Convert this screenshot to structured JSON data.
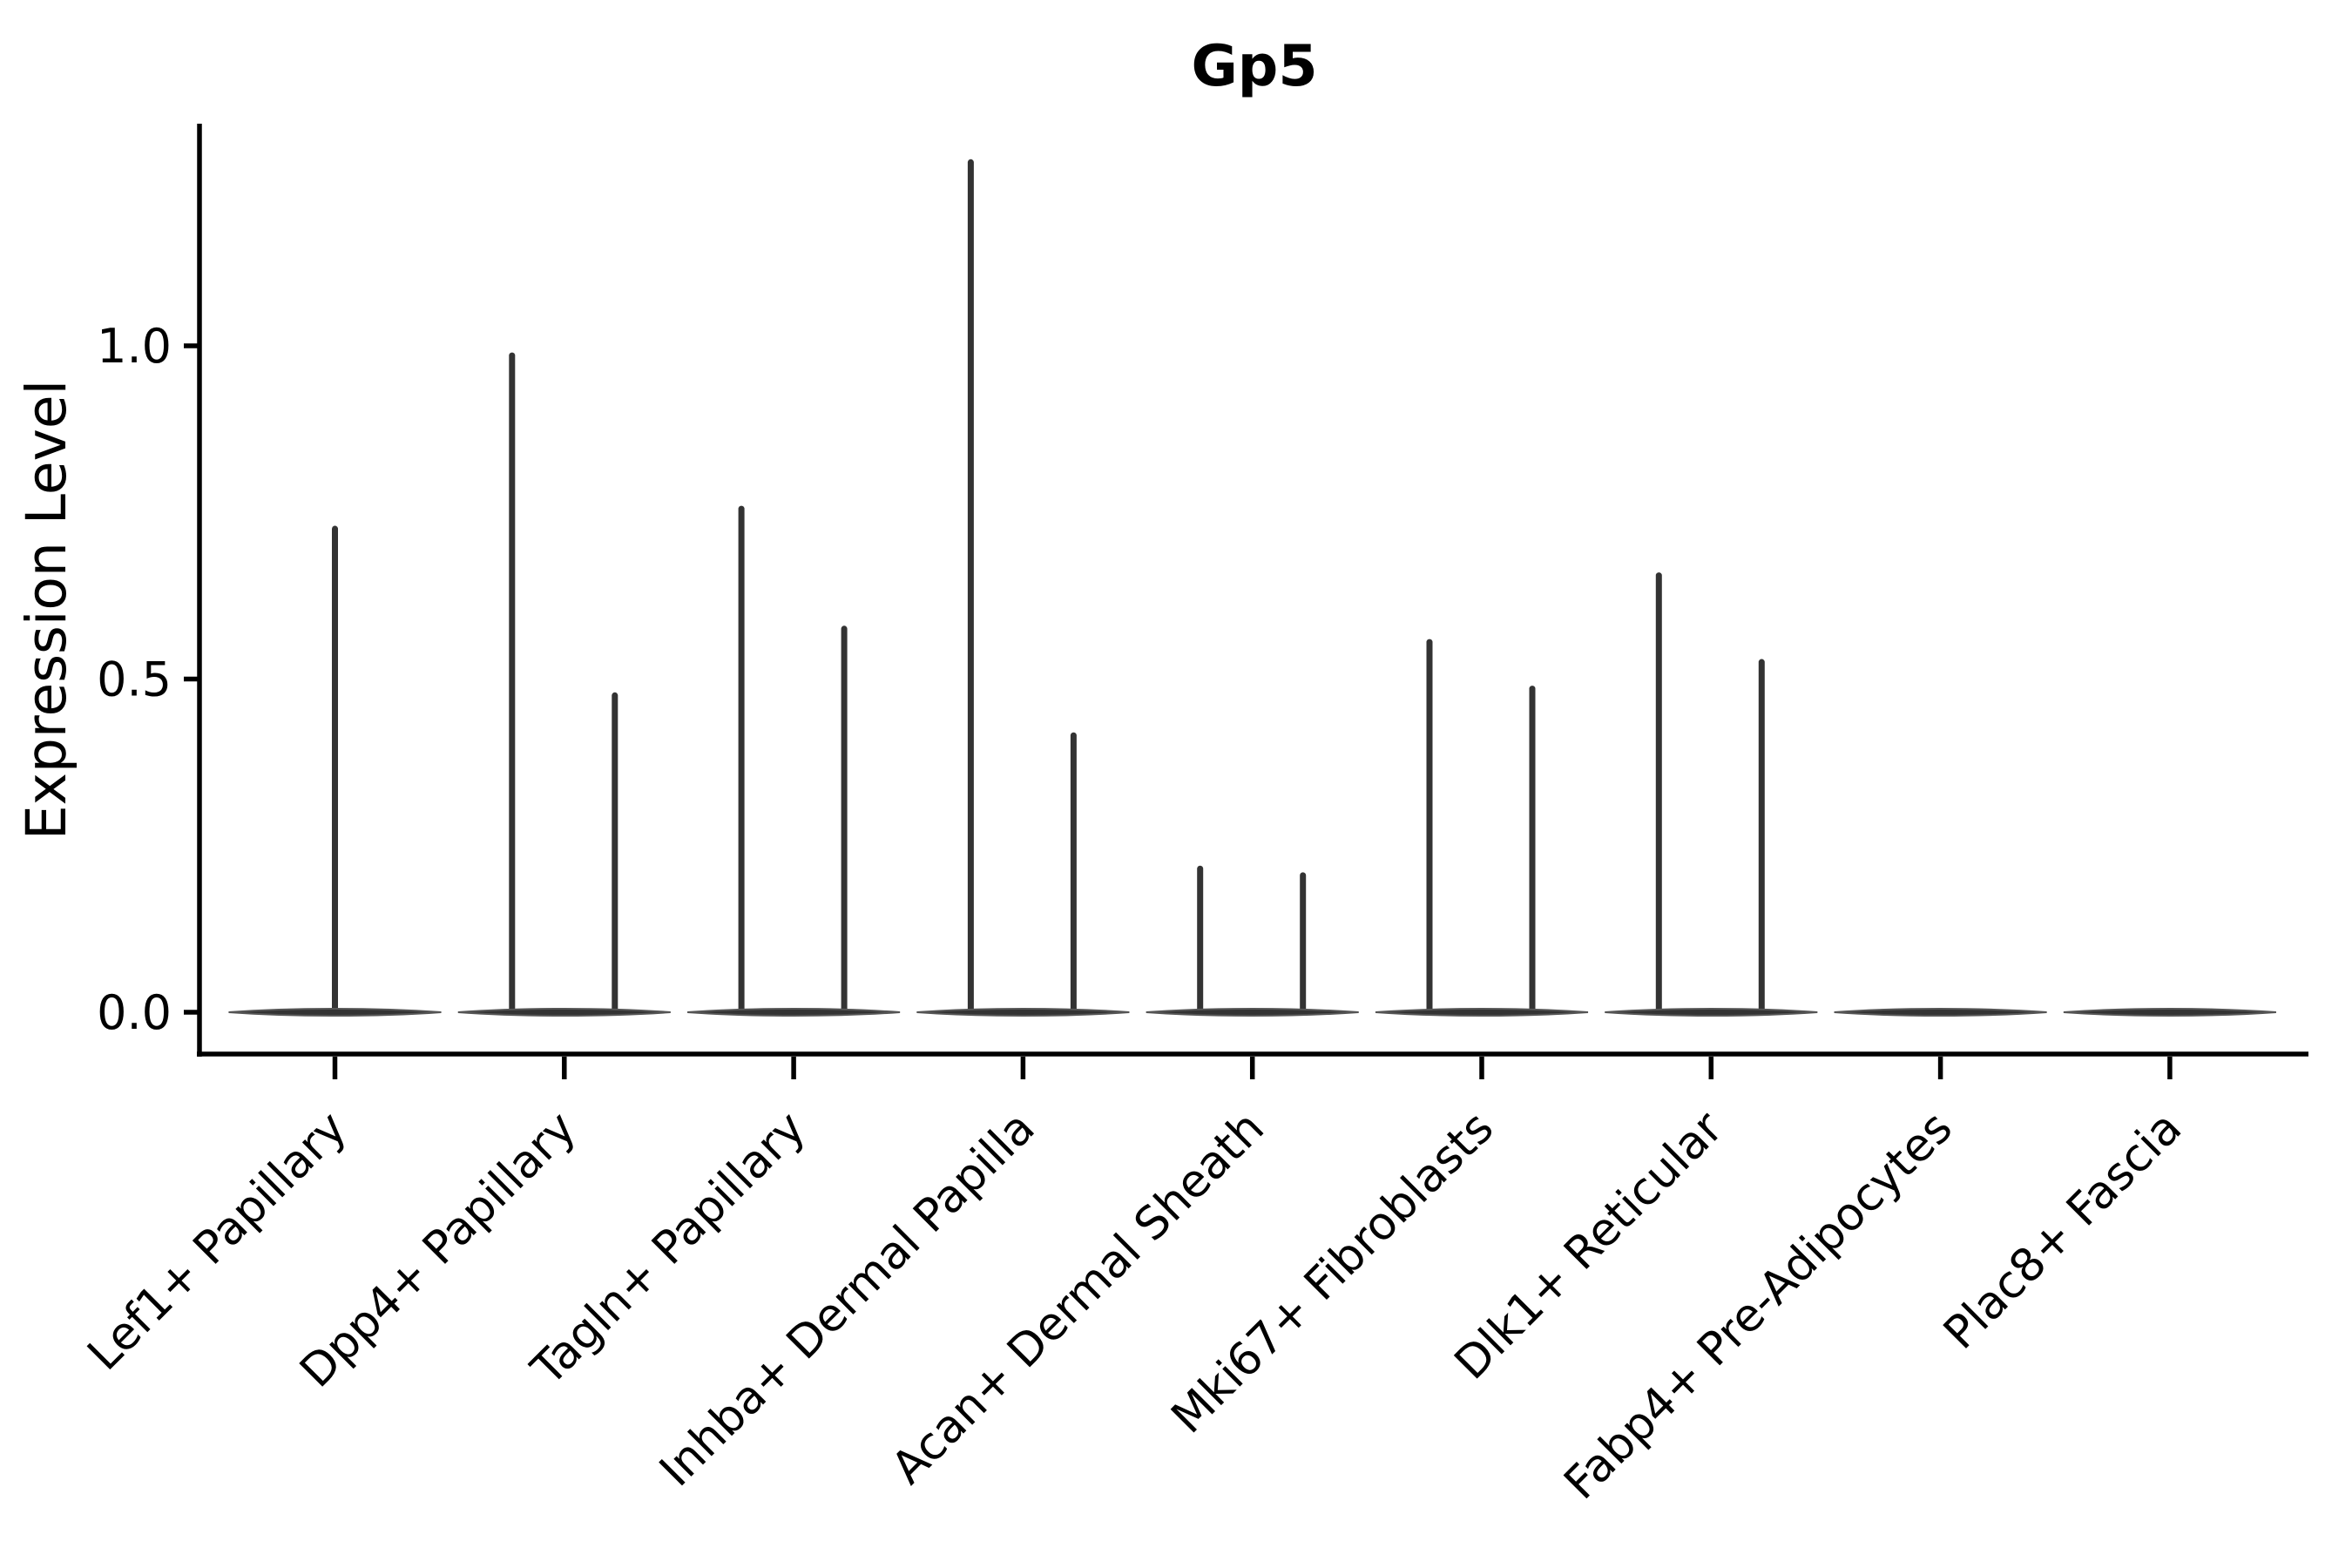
{
  "figure": {
    "title": "Gp5",
    "ylabel": "Expression Level",
    "background_color": "#ffffff",
    "ink_color": "#000000",
    "violin_color": "#333333",
    "violin_edge_color": "#555555"
  },
  "chart_data": {
    "type": "violin",
    "title": "Gp5",
    "xlabel": "",
    "ylabel": "Expression Level",
    "ylim": [
      0.0,
      1.33
    ],
    "yticks": [
      {
        "value": 0.0,
        "label": "0.0"
      },
      {
        "value": 0.5,
        "label": "0.5"
      },
      {
        "value": 1.0,
        "label": "1.0"
      }
    ],
    "grid": false,
    "legend": null,
    "x_tick_label_rotation_deg": 45,
    "categories": [
      "Lef1+ Papillary",
      "Dpp4+ Papillary",
      "Tagln+ Papillary",
      "Inhba+ Dermal Papilla",
      "Acan+ Dermal Sheath",
      "Mki67+ Fibroblasts",
      "Dlk1+ Reticular",
      "Fabp4+ Pre-Adipocytes",
      "Plac8+ Fascia"
    ],
    "violins": [
      {
        "category": "Lef1+ Papillary",
        "bulk_at_zero": true,
        "spikes": [
          {
            "position": "center",
            "max_value": 0.73
          }
        ]
      },
      {
        "category": "Dpp4+ Papillary",
        "bulk_at_zero": true,
        "spikes": [
          {
            "position": "left",
            "max_value": 0.99
          },
          {
            "position": "right",
            "max_value": 0.48
          }
        ]
      },
      {
        "category": "Tagln+ Papillary",
        "bulk_at_zero": true,
        "spikes": [
          {
            "position": "left",
            "max_value": 0.76
          },
          {
            "position": "right",
            "max_value": 0.58
          }
        ]
      },
      {
        "category": "Inhba+ Dermal Papilla",
        "bulk_at_zero": true,
        "spikes": [
          {
            "position": "left",
            "max_value": 1.28
          },
          {
            "position": "right",
            "max_value": 0.42
          }
        ]
      },
      {
        "category": "Acan+ Dermal Sheath",
        "bulk_at_zero": true,
        "spikes": [
          {
            "position": "left",
            "max_value": 0.22
          },
          {
            "position": "right",
            "max_value": 0.21
          }
        ]
      },
      {
        "category": "Mki67+ Fibroblasts",
        "bulk_at_zero": true,
        "spikes": [
          {
            "position": "left",
            "max_value": 0.56
          },
          {
            "position": "right",
            "max_value": 0.49
          }
        ]
      },
      {
        "category": "Dlk1+ Reticular",
        "bulk_at_zero": true,
        "spikes": [
          {
            "position": "left",
            "max_value": 0.66
          },
          {
            "position": "right",
            "max_value": 0.53
          }
        ]
      },
      {
        "category": "Fabp4+ Pre-Adipocytes",
        "bulk_at_zero": true,
        "spikes": []
      },
      {
        "category": "Plac8+ Fascia",
        "bulk_at_zero": true,
        "spikes": []
      }
    ]
  }
}
